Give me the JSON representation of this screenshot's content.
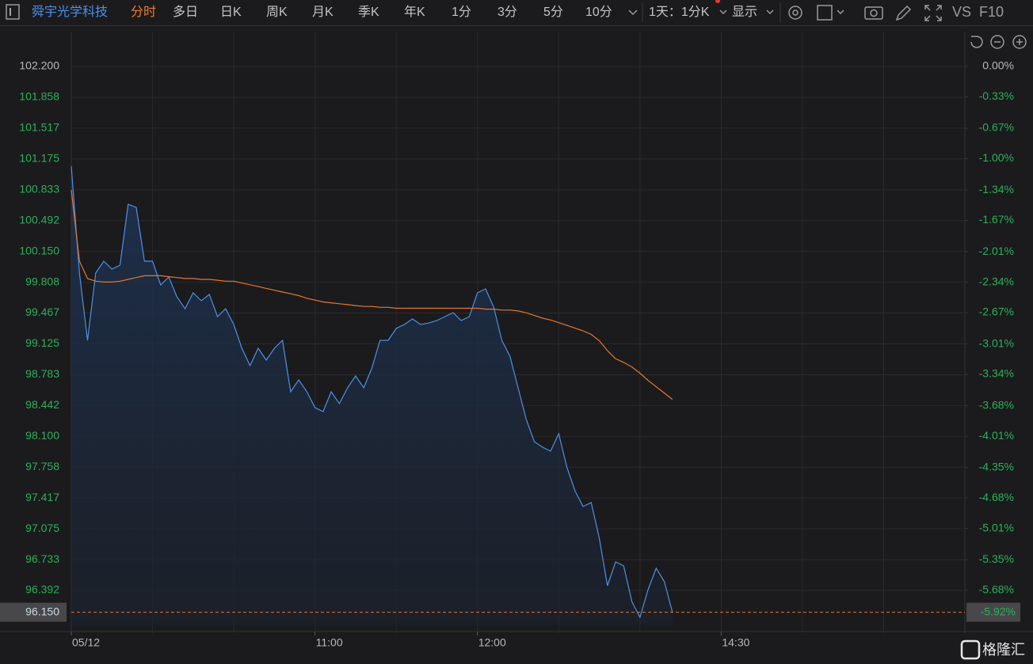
{
  "toolbar": {
    "stock_name": "舜宇光学科技",
    "tabs": [
      "分时",
      "多日",
      "日K",
      "周K",
      "月K",
      "季K",
      "年K",
      "1分",
      "3分",
      "5分",
      "10分"
    ],
    "period": "1天：1分K",
    "display": "显示",
    "vs": "VS",
    "f10": "F10"
  },
  "watermark": "格隆汇",
  "chart_data": {
    "type": "line",
    "x": [
      0,
      3,
      6,
      9,
      12,
      15,
      18,
      21,
      24,
      27,
      30,
      33,
      36,
      39,
      42,
      45,
      48,
      51,
      54,
      57,
      60,
      63,
      66,
      69,
      72,
      75,
      78,
      81,
      84,
      87,
      90,
      93,
      96,
      99,
      102,
      105,
      108,
      111,
      114,
      117,
      120,
      123,
      126,
      129,
      132,
      135,
      138,
      141,
      144,
      147,
      150,
      153,
      156,
      159,
      162,
      165,
      168,
      171,
      174,
      177,
      180,
      183,
      186,
      189,
      192,
      195,
      198,
      201,
      204,
      207,
      210,
      213,
      216,
      219,
      222
    ],
    "xlim": [
      0,
      330
    ],
    "xticks": [
      {
        "value": 0,
        "label": "05/12"
      },
      {
        "value": 90,
        "label": "11:00"
      },
      {
        "value": 150,
        "label": "12:00"
      },
      {
        "value": 240,
        "label": "14:30"
      }
    ],
    "ylim": [
      96.006,
      102.323
    ],
    "yticks": [
      {
        "value": 102.2,
        "label": "102.200"
      },
      {
        "value": 101.858,
        "label": "101.858"
      },
      {
        "value": 101.517,
        "label": "101.517"
      },
      {
        "value": 101.175,
        "label": "101.175"
      },
      {
        "value": 100.833,
        "label": "100.833"
      },
      {
        "value": 100.492,
        "label": "100.492"
      },
      {
        "value": 100.15,
        "label": "100.150"
      },
      {
        "value": 99.808,
        "label": "99.808"
      },
      {
        "value": 99.467,
        "label": "99.467"
      },
      {
        "value": 99.125,
        "label": "99.125"
      },
      {
        "value": 98.783,
        "label": "98.783"
      },
      {
        "value": 98.442,
        "label": "98.442"
      },
      {
        "value": 98.1,
        "label": "98.100"
      },
      {
        "value": 97.758,
        "label": "97.758"
      },
      {
        "value": 97.417,
        "label": "97.417"
      },
      {
        "value": 97.075,
        "label": "97.075"
      },
      {
        "value": 96.733,
        "label": "96.733"
      },
      {
        "value": 96.392,
        "label": "96.392"
      }
    ],
    "y2lim": [
      -6.061,
      0.12
    ],
    "y2ticks": [
      {
        "value": 0,
        "label": "0.00%"
      },
      {
        "value": -0.33,
        "label": "-0.33%"
      },
      {
        "value": -0.67,
        "label": "-0.67%"
      },
      {
        "value": -1.0,
        "label": "-1.00%"
      },
      {
        "value": -1.34,
        "label": "-1.34%"
      },
      {
        "value": -1.67,
        "label": "-1.67%"
      },
      {
        "value": -2.01,
        "label": "-2.01%"
      },
      {
        "value": -2.34,
        "label": "-2.34%"
      },
      {
        "value": -2.67,
        "label": "-2.67%"
      },
      {
        "value": -3.01,
        "label": "-3.01%"
      },
      {
        "value": -3.34,
        "label": "-3.34%"
      },
      {
        "value": -3.68,
        "label": "-3.68%"
      },
      {
        "value": -4.01,
        "label": "-4.01%"
      },
      {
        "value": -4.35,
        "label": "-4.35%"
      },
      {
        "value": -4.68,
        "label": "-4.68%"
      },
      {
        "value": -5.01,
        "label": "-5.01%"
      },
      {
        "value": -5.35,
        "label": "-5.35%"
      },
      {
        "value": -5.68,
        "label": "-5.68%"
      }
    ],
    "grid": true,
    "series": [
      {
        "color": "#4d8fe8",
        "values": [
          101.095,
          99.91,
          99.164,
          99.91,
          100.042,
          99.954,
          99.998,
          100.673,
          100.638,
          100.042,
          100.042,
          99.779,
          99.866,
          99.647,
          99.515,
          99.691,
          99.603,
          99.673,
          99.428,
          99.515,
          99.34,
          99.077,
          98.884,
          99.077,
          98.945,
          99.077,
          99.164,
          98.594,
          98.726,
          98.594,
          98.419,
          98.375,
          98.594,
          98.463,
          98.638,
          98.77,
          98.638,
          98.857,
          99.164,
          99.164,
          99.296,
          99.34,
          99.401,
          99.34,
          99.357,
          99.384,
          99.428,
          99.471,
          99.384,
          99.428,
          99.691,
          99.735,
          99.533,
          99.164,
          98.989,
          98.638,
          98.287,
          98.041,
          97.98,
          97.936,
          98.129,
          97.761,
          97.497,
          97.322,
          97.366,
          96.971,
          96.445,
          96.708,
          96.664,
          96.269,
          96.094,
          96.401,
          96.638,
          96.489,
          96.15
        ]
      },
      {
        "color": "#e8762d",
        "values": [
          100.831,
          100.042,
          99.849,
          99.82,
          99.81,
          99.81,
          99.82,
          99.84,
          99.86,
          99.88,
          99.88,
          99.88,
          99.87,
          99.86,
          99.85,
          99.85,
          99.84,
          99.84,
          99.83,
          99.82,
          99.82,
          99.8,
          99.78,
          99.76,
          99.74,
          99.72,
          99.7,
          99.68,
          99.66,
          99.63,
          99.61,
          99.59,
          99.58,
          99.57,
          99.56,
          99.55,
          99.54,
          99.54,
          99.53,
          99.53,
          99.52,
          99.52,
          99.52,
          99.52,
          99.52,
          99.52,
          99.52,
          99.52,
          99.52,
          99.52,
          99.52,
          99.51,
          99.51,
          99.5,
          99.5,
          99.49,
          99.47,
          99.44,
          99.41,
          99.39,
          99.36,
          99.33,
          99.3,
          99.27,
          99.23,
          99.16,
          99.05,
          98.96,
          98.92,
          98.87,
          98.8,
          98.72,
          98.65,
          98.58,
          98.51
        ]
      }
    ],
    "last_price": {
      "value": 96.15,
      "label": "96.150"
    },
    "last_change": {
      "value": -5.92,
      "label": "-5.92%"
    }
  }
}
